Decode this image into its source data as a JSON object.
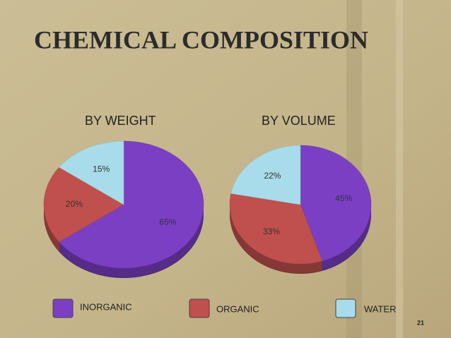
{
  "title": "CHEMICAL COMPOSITION",
  "slide_number": "21",
  "chart_data": [
    {
      "type": "pie",
      "title": "BY WEIGHT",
      "categories": [
        "INORGANIC",
        "ORGANIC",
        "WATER"
      ],
      "values": [
        65,
        20,
        15
      ],
      "value_labels": [
        "65%",
        "20%",
        "15%"
      ],
      "colors": [
        "#7b3fc4",
        "#c0504d",
        "#a8dcea"
      ]
    },
    {
      "type": "pie",
      "title": "BY VOLUME",
      "categories": [
        "INORGANIC",
        "ORGANIC",
        "WATER"
      ],
      "values": [
        45,
        33,
        22
      ],
      "value_labels": [
        "45%",
        "33%",
        "22%"
      ],
      "colors": [
        "#7b3fc4",
        "#c0504d",
        "#a8dcea"
      ]
    }
  ]
}
